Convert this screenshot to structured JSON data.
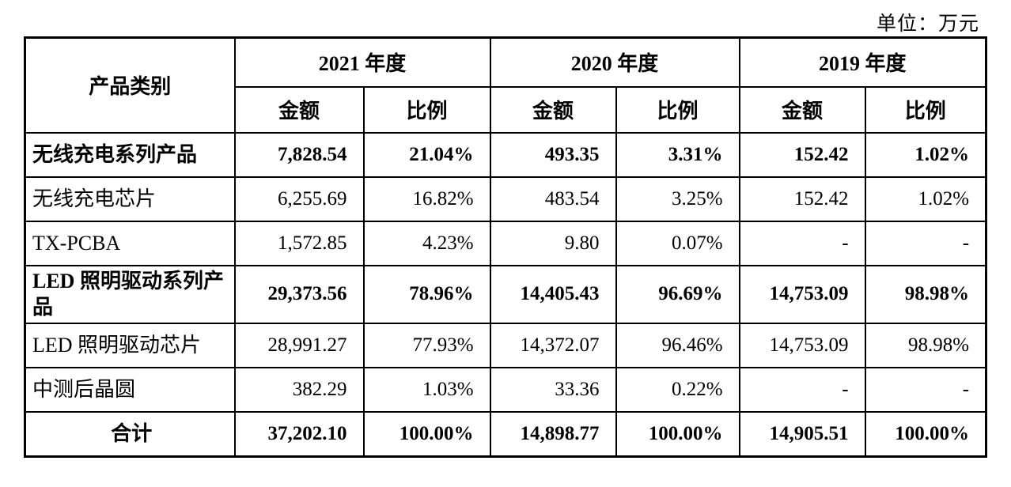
{
  "unit_label": "单位：万元",
  "colors": {
    "border": "#000000",
    "text": "#000000",
    "background": "#ffffff"
  },
  "table": {
    "product_header": "产品类别",
    "year_headers": [
      "2021 年度",
      "2020 年度",
      "2019 年度"
    ],
    "sub_headers": {
      "amount": "金额",
      "ratio": "比例"
    },
    "rows": [
      {
        "name": "无线充电系列产品",
        "bold": true,
        "is_total": false,
        "values": [
          "7,828.54",
          "21.04%",
          "493.35",
          "3.31%",
          "152.42",
          "1.02%"
        ]
      },
      {
        "name": "无线充电芯片",
        "bold": false,
        "is_total": false,
        "values": [
          "6,255.69",
          "16.82%",
          "483.54",
          "3.25%",
          "152.42",
          "1.02%"
        ]
      },
      {
        "name": "TX-PCBA",
        "bold": false,
        "is_total": false,
        "values": [
          "1,572.85",
          "4.23%",
          "9.80",
          "0.07%",
          "-",
          "-"
        ]
      },
      {
        "name": "LED 照明驱动系列产品",
        "bold": true,
        "is_total": false,
        "values": [
          "29,373.56",
          "78.96%",
          "14,405.43",
          "96.69%",
          "14,753.09",
          "98.98%"
        ]
      },
      {
        "name": "LED 照明驱动芯片",
        "bold": false,
        "is_total": false,
        "values": [
          "28,991.27",
          "77.93%",
          "14,372.07",
          "96.46%",
          "14,753.09",
          "98.98%"
        ]
      },
      {
        "name": "中测后晶圆",
        "bold": false,
        "is_total": false,
        "values": [
          "382.29",
          "1.03%",
          "33.36",
          "0.22%",
          "-",
          "-"
        ]
      },
      {
        "name": "合计",
        "bold": true,
        "is_total": true,
        "values": [
          "37,202.10",
          "100.00%",
          "14,898.77",
          "100.00%",
          "14,905.51",
          "100.00%"
        ]
      }
    ]
  }
}
